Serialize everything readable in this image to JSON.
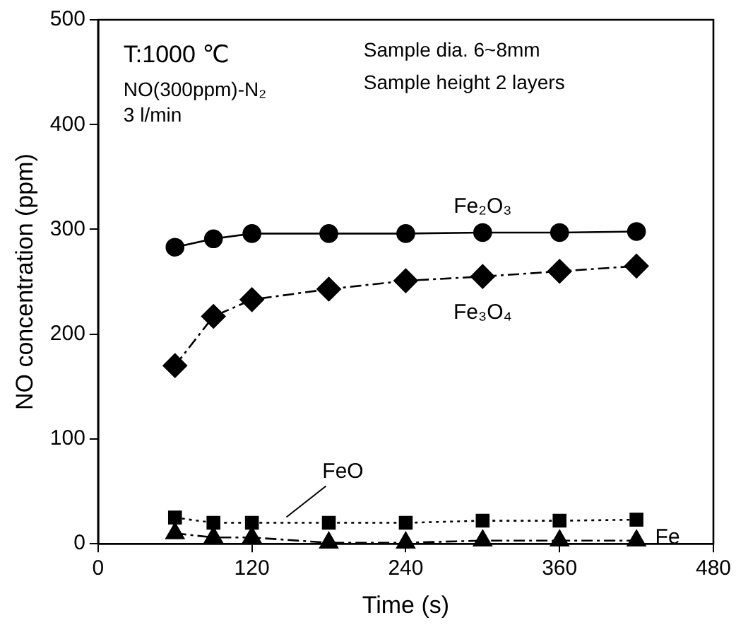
{
  "chart_data": {
    "type": "line",
    "xlabel": "Time (s)",
    "ylabel": "NO concentration (ppm)",
    "x": [
      60,
      90,
      120,
      180,
      240,
      300,
      360,
      420
    ],
    "xlim": [
      0,
      480
    ],
    "xticks": [
      0,
      120,
      240,
      360,
      480
    ],
    "ylim": [
      0,
      500
    ],
    "yticks": [
      0,
      100,
      200,
      300,
      400,
      500
    ],
    "grid": false,
    "legend": false,
    "series": [
      {
        "name": "Fe₂O₃",
        "color": "#000000",
        "marker": "circle",
        "line_style": "solid",
        "values": [
          283,
          291,
          296,
          296,
          296,
          297,
          297,
          298
        ]
      },
      {
        "name": "Fe₃O₄",
        "color": "#000000",
        "marker": "diamond",
        "line_style": "dashed",
        "values": [
          170,
          217,
          233,
          243,
          251,
          255,
          260,
          265
        ]
      },
      {
        "name": "FeO",
        "color": "#000000",
        "marker": "square",
        "line_style": "dotted",
        "values": [
          25,
          20,
          20,
          20,
          20,
          22,
          22,
          23
        ]
      },
      {
        "name": "Fe",
        "color": "#000000",
        "marker": "triangle",
        "line_style": "dashed",
        "values": [
          10,
          6,
          6,
          1,
          1,
          3,
          3,
          3
        ]
      }
    ],
    "annotations": [
      "T:1000 ℃",
      "NO(300ppm)-N₂",
      "3 l/min",
      "Sample dia. 6~8mm",
      "Sample height 2 layers"
    ]
  }
}
